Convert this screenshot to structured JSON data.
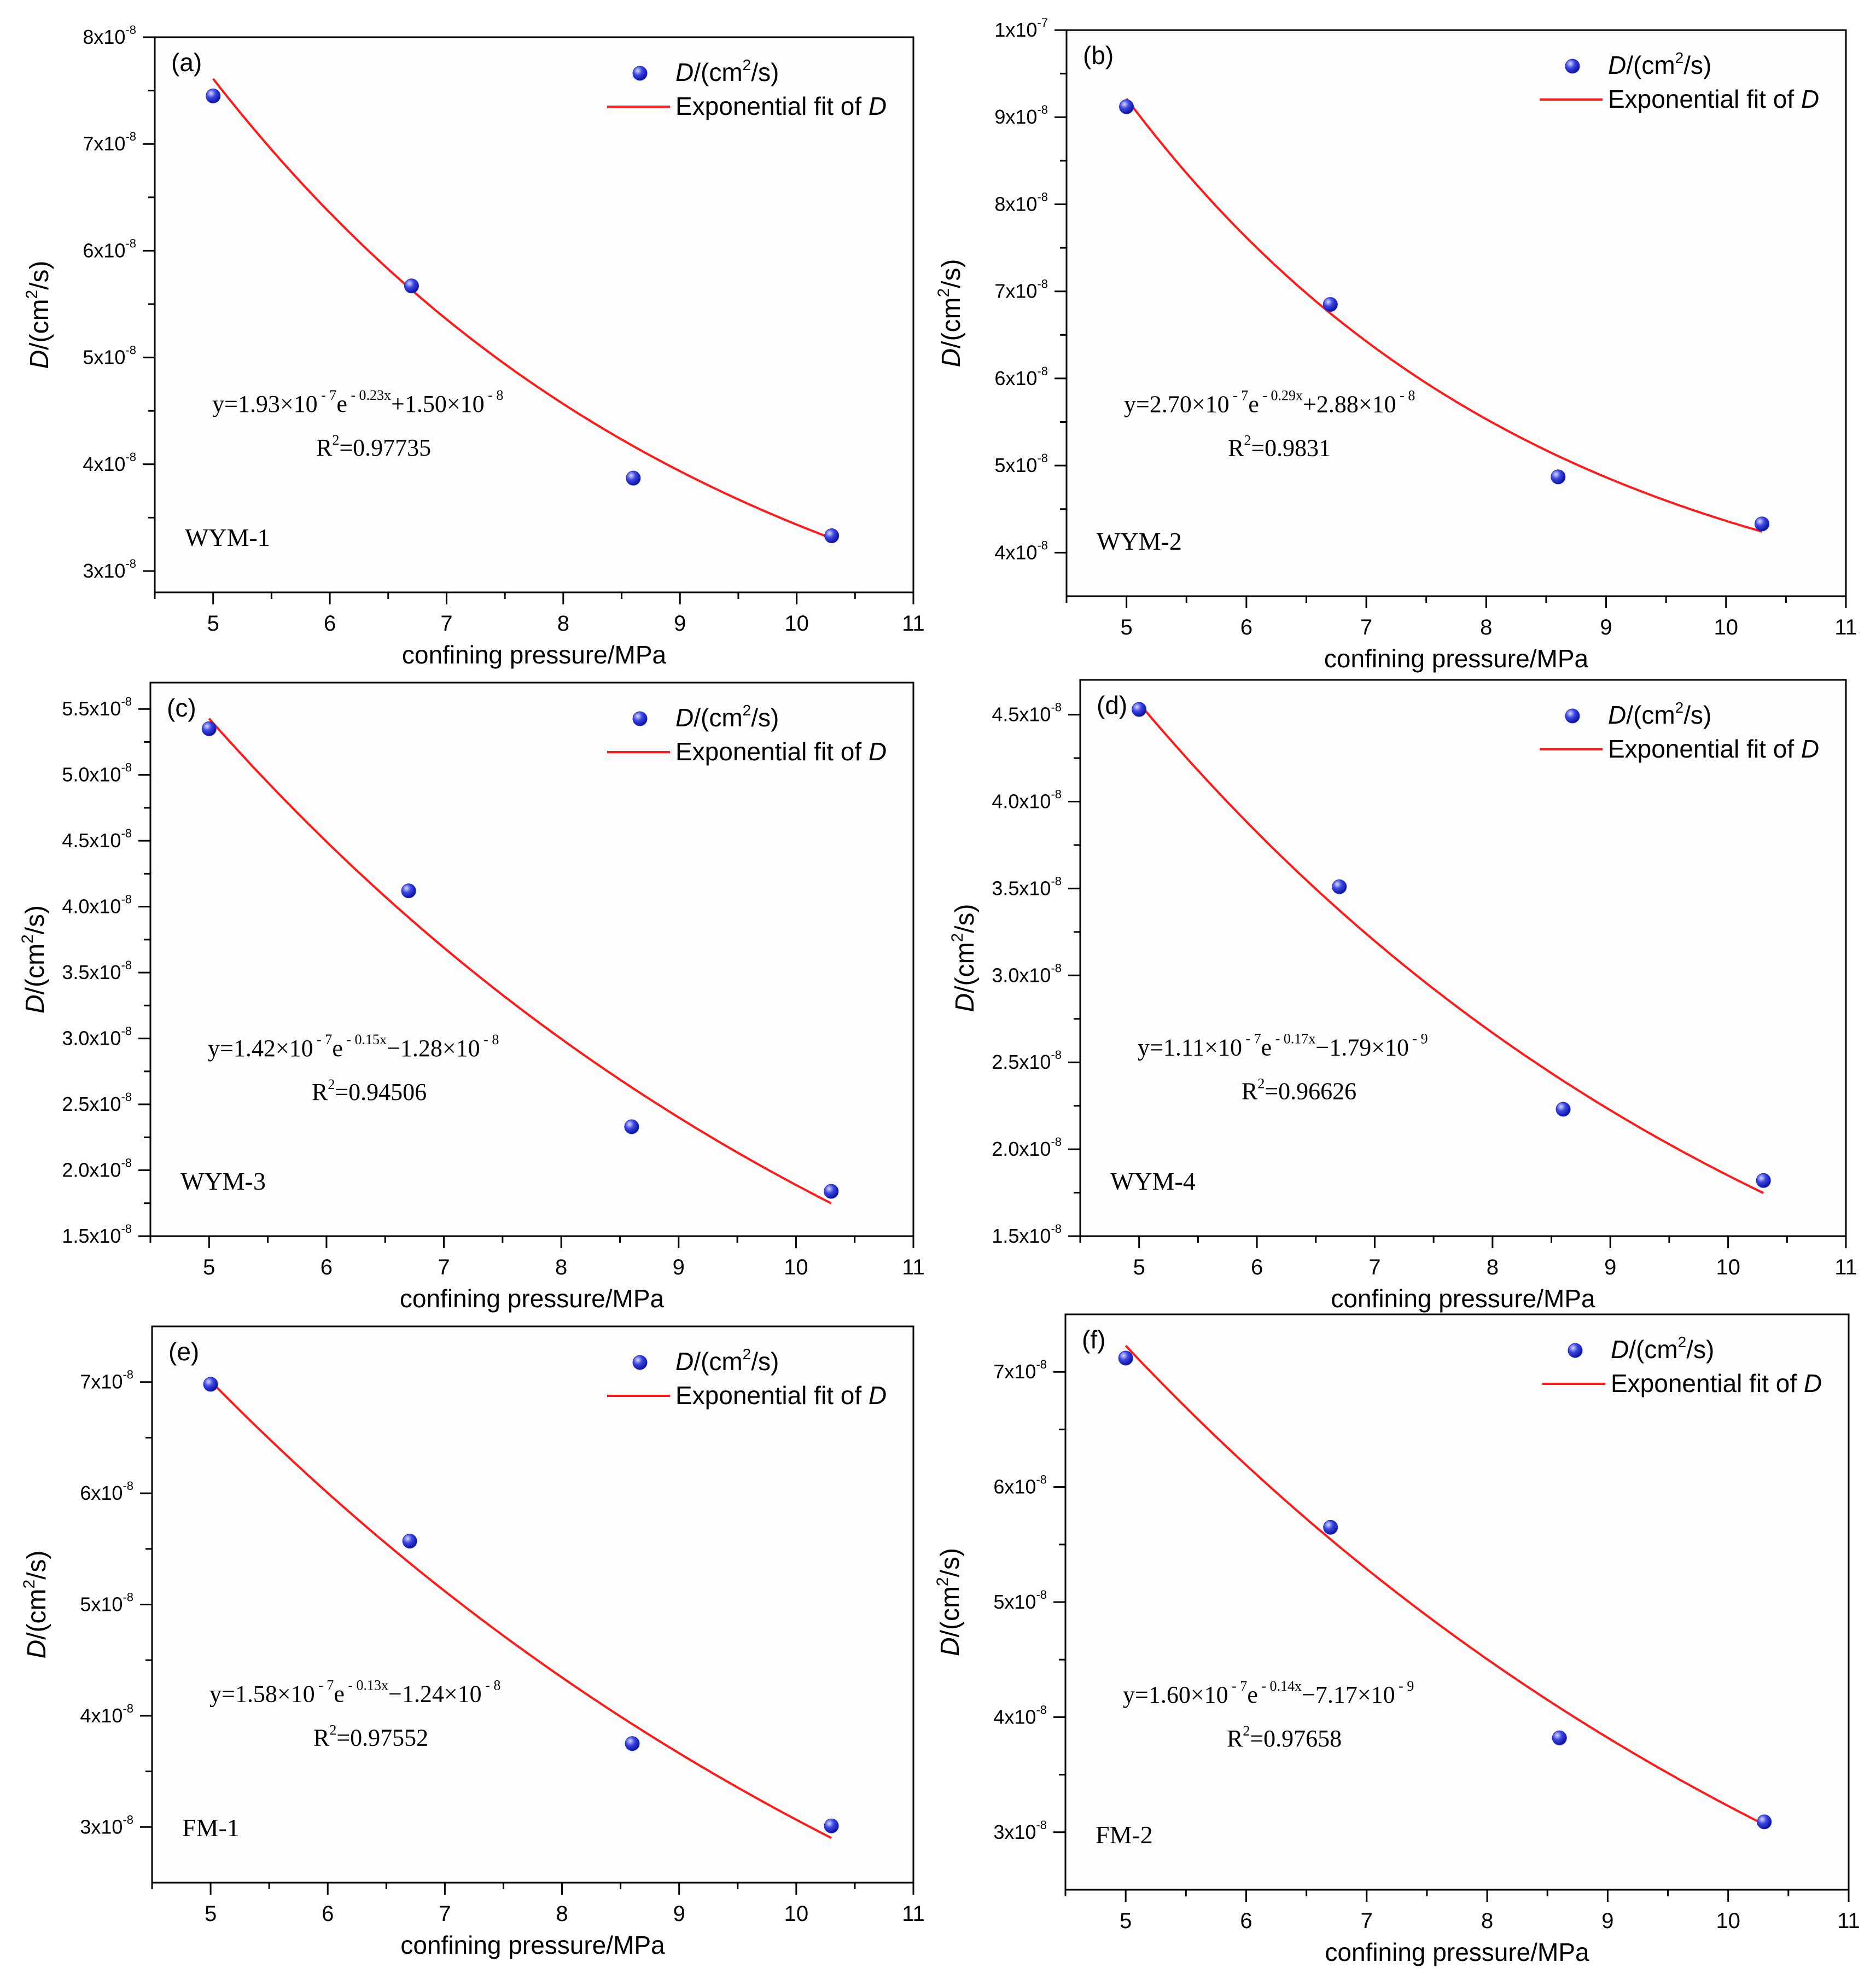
{
  "colors": {
    "fit_line": "#ff1a1a",
    "marker_fill": "#1f2bd6",
    "marker_highlight": "#c9ccff",
    "axis": "#000000",
    "plot_background": "#fdfdfd"
  },
  "chart_data": [
    {
      "id": "a",
      "type": "scatter",
      "panel_label": "(a)",
      "sample": "WYM-1",
      "xlabel": "confining pressure/MPa",
      "ylabel_main": "D",
      "ylabel_unit": "/(cm",
      "ylabel_sup": "2",
      "ylabel_tail": "/s)",
      "xlim": [
        4.5,
        11
      ],
      "ylim": [
        2.8e-08,
        8e-08
      ],
      "xticks": [
        5,
        6,
        7,
        8,
        9,
        10,
        11
      ],
      "yticks": [
        {
          "value": 3e-08,
          "mant": "3x10",
          "exp": "-8"
        },
        {
          "value": 4e-08,
          "mant": "4x10",
          "exp": "-8"
        },
        {
          "value": 5e-08,
          "mant": "5x10",
          "exp": "-8"
        },
        {
          "value": 6e-08,
          "mant": "6x10",
          "exp": "-8"
        },
        {
          "value": 7e-08,
          "mant": "7x10",
          "exp": "-8"
        },
        {
          "value": 8e-08,
          "mant": "8x10",
          "exp": "-8"
        }
      ],
      "points": [
        {
          "x": 5.0,
          "y": 7.45e-08
        },
        {
          "x": 6.7,
          "y": 5.67e-08
        },
        {
          "x": 8.6,
          "y": 3.87e-08
        },
        {
          "x": 10.3,
          "y": 3.33e-08
        }
      ],
      "fit": {
        "a": 1.93e-07,
        "b": 0.23,
        "c": 1.5e-08
      },
      "legend": {
        "points_main": "D",
        "points_unit": "/(cm",
        "points_sup": "2",
        "points_tail": "/s)",
        "fit_text": "Exponential fit of ",
        "fit_var": "D"
      },
      "equation": {
        "p1": "y=1.93×10",
        "e1": " - 7",
        "p2": "e",
        "e2": " - 0.23x",
        "p3": "+1.50×10",
        "e3": " - 8",
        "r2_pre": "R",
        "r2_sup": "2",
        "r2_val": "=0.97735"
      }
    },
    {
      "id": "b",
      "type": "scatter",
      "panel_label": "(b)",
      "sample": "WYM-2",
      "xlabel": "confining pressure/MPa",
      "ylabel_main": "D",
      "ylabel_unit": "/(cm",
      "ylabel_sup": "2",
      "ylabel_tail": "/s)",
      "xlim": [
        4.5,
        11
      ],
      "ylim": [
        3.5e-08,
        1e-07
      ],
      "xticks": [
        5,
        6,
        7,
        8,
        9,
        10,
        11
      ],
      "yticks": [
        {
          "value": 4e-08,
          "mant": "4x10",
          "exp": "-8"
        },
        {
          "value": 5e-08,
          "mant": "5x10",
          "exp": "-8"
        },
        {
          "value": 6e-08,
          "mant": "6x10",
          "exp": "-8"
        },
        {
          "value": 7e-08,
          "mant": "7x10",
          "exp": "-8"
        },
        {
          "value": 8e-08,
          "mant": "8x10",
          "exp": "-8"
        },
        {
          "value": 9e-08,
          "mant": "9x10",
          "exp": "-8"
        },
        {
          "value": 1e-07,
          "mant": "1x10",
          "exp": "-7"
        }
      ],
      "points": [
        {
          "x": 5.0,
          "y": 9.12e-08
        },
        {
          "x": 6.7,
          "y": 6.85e-08
        },
        {
          "x": 8.6,
          "y": 4.87e-08
        },
        {
          "x": 10.3,
          "y": 4.33e-08
        }
      ],
      "fit": {
        "a": 2.7e-07,
        "b": 0.29,
        "c": 2.88e-08
      },
      "legend": {
        "points_main": "D",
        "points_unit": "/(cm",
        "points_sup": "2",
        "points_tail": "/s)",
        "fit_text": "Exponential fit of ",
        "fit_var": "D"
      },
      "equation": {
        "p1": "y=2.70×10",
        "e1": " - 7",
        "p2": "e",
        "e2": " - 0.29x",
        "p3": "+2.88×10",
        "e3": " - 8",
        "r2_pre": "R",
        "r2_sup": "2",
        "r2_val": "=0.9831"
      }
    },
    {
      "id": "c",
      "type": "scatter",
      "panel_label": "(c)",
      "sample": "WYM-3",
      "xlabel": "confining pressure/MPa",
      "ylabel_main": "D",
      "ylabel_unit": "/(cm",
      "ylabel_sup": "2",
      "ylabel_tail": "/s)",
      "xlim": [
        4.5,
        11
      ],
      "ylim": [
        1.5e-08,
        5.7e-08
      ],
      "xticks": [
        5,
        6,
        7,
        8,
        9,
        10,
        11
      ],
      "yticks": [
        {
          "value": 1.5e-08,
          "mant": "1.5x10",
          "exp": "-8"
        },
        {
          "value": 2e-08,
          "mant": "2.0x10",
          "exp": "-8"
        },
        {
          "value": 2.5e-08,
          "mant": "2.5x10",
          "exp": "-8"
        },
        {
          "value": 3e-08,
          "mant": "3.0x10",
          "exp": "-8"
        },
        {
          "value": 3.5e-08,
          "mant": "3.5x10",
          "exp": "-8"
        },
        {
          "value": 4e-08,
          "mant": "4.0x10",
          "exp": "-8"
        },
        {
          "value": 4.5e-08,
          "mant": "4.5x10",
          "exp": "-8"
        },
        {
          "value": 5e-08,
          "mant": "5.0x10",
          "exp": "-8"
        },
        {
          "value": 5.5e-08,
          "mant": "5.5x10",
          "exp": "-8"
        }
      ],
      "points": [
        {
          "x": 5.0,
          "y": 5.35e-08
        },
        {
          "x": 6.7,
          "y": 4.12e-08
        },
        {
          "x": 8.6,
          "y": 2.33e-08
        },
        {
          "x": 10.3,
          "y": 1.84e-08
        }
      ],
      "fit": {
        "a": 1.42e-07,
        "b": 0.15,
        "c": -1.28e-08
      },
      "legend": {
        "points_main": "D",
        "points_unit": "/(cm",
        "points_sup": "2",
        "points_tail": "/s)",
        "fit_text": "Exponential fit of ",
        "fit_var": "D"
      },
      "equation": {
        "p1": "y=1.42×10",
        "e1": " - 7",
        "p2": "e",
        "e2": " - 0.15x",
        "p3": "−1.28×10",
        "e3": " - 8",
        "r2_pre": "R",
        "r2_sup": "2",
        "r2_val": "=0.94506"
      }
    },
    {
      "id": "d",
      "type": "scatter",
      "panel_label": "(d)",
      "sample": "WYM-4",
      "xlabel": "confining pressure/MPa",
      "ylabel_main": "D",
      "ylabel_unit": "/(cm",
      "ylabel_sup": "2",
      "ylabel_tail": "/s)",
      "xlim": [
        4.5,
        11
      ],
      "ylim": [
        1.5e-08,
        4.7e-08
      ],
      "xticks": [
        5,
        6,
        7,
        8,
        9,
        10,
        11
      ],
      "yticks": [
        {
          "value": 1.5e-08,
          "mant": "1.5x10",
          "exp": "-8"
        },
        {
          "value": 2e-08,
          "mant": "2.0x10",
          "exp": "-8"
        },
        {
          "value": 2.5e-08,
          "mant": "2.5x10",
          "exp": "-8"
        },
        {
          "value": 3e-08,
          "mant": "3.0x10",
          "exp": "-8"
        },
        {
          "value": 3.5e-08,
          "mant": "3.5x10",
          "exp": "-8"
        },
        {
          "value": 4e-08,
          "mant": "4.0x10",
          "exp": "-8"
        },
        {
          "value": 4.5e-08,
          "mant": "4.5x10",
          "exp": "-8"
        }
      ],
      "points": [
        {
          "x": 5.0,
          "y": 4.53e-08
        },
        {
          "x": 6.7,
          "y": 3.51e-08
        },
        {
          "x": 8.6,
          "y": 2.23e-08
        },
        {
          "x": 10.3,
          "y": 1.82e-08
        }
      ],
      "fit": {
        "a": 1.11e-07,
        "b": 0.17,
        "c": -1.79e-09
      },
      "legend": {
        "points_main": "D",
        "points_unit": "/(cm",
        "points_sup": "2",
        "points_tail": "/s)",
        "fit_text": "Exponential fit of ",
        "fit_var": "D"
      },
      "equation": {
        "p1": "y=1.11×10",
        "e1": " - 7",
        "p2": "e",
        "e2": " - 0.17x",
        "p3": "−1.79×10",
        "e3": " - 9",
        "r2_pre": "R",
        "r2_sup": "2",
        "r2_val": "=0.96626"
      }
    },
    {
      "id": "e",
      "type": "scatter",
      "panel_label": "(e)",
      "sample": "FM-1",
      "xlabel": "confining pressure/MPa",
      "ylabel_main": "D",
      "ylabel_unit": "/(cm",
      "ylabel_sup": "2",
      "ylabel_tail": "/s)",
      "xlim": [
        4.5,
        11
      ],
      "ylim": [
        2.5e-08,
        7.5e-08
      ],
      "xticks": [
        5,
        6,
        7,
        8,
        9,
        10,
        11
      ],
      "yticks": [
        {
          "value": 3e-08,
          "mant": "3x10",
          "exp": "-8"
        },
        {
          "value": 4e-08,
          "mant": "4x10",
          "exp": "-8"
        },
        {
          "value": 5e-08,
          "mant": "5x10",
          "exp": "-8"
        },
        {
          "value": 6e-08,
          "mant": "6x10",
          "exp": "-8"
        },
        {
          "value": 7e-08,
          "mant": "7x10",
          "exp": "-8"
        }
      ],
      "points": [
        {
          "x": 5.0,
          "y": 6.98e-08
        },
        {
          "x": 6.7,
          "y": 5.57e-08
        },
        {
          "x": 8.6,
          "y": 3.75e-08
        },
        {
          "x": 10.3,
          "y": 3.01e-08
        }
      ],
      "fit": {
        "a": 1.58e-07,
        "b": 0.13,
        "c": -1.24e-08
      },
      "legend": {
        "points_main": "D",
        "points_unit": "/(cm",
        "points_sup": "2",
        "points_tail": "/s)",
        "fit_text": "Exponential fit of ",
        "fit_var": "D"
      },
      "equation": {
        "p1": "y=1.58×10",
        "e1": " - 7",
        "p2": "e",
        "e2": " - 0.13x",
        "p3": "−1.24×10",
        "e3": " - 8",
        "r2_pre": "R",
        "r2_sup": "2",
        "r2_val": "=0.97552"
      }
    },
    {
      "id": "f",
      "type": "scatter",
      "panel_label": "(f)",
      "sample": "FM-2",
      "xlabel": "confining pressure/MPa",
      "ylabel_main": "D",
      "ylabel_unit": "/(cm",
      "ylabel_sup": "2",
      "ylabel_tail": "/s)",
      "xlim": [
        4.5,
        11
      ],
      "ylim": [
        2.5e-08,
        7.5e-08
      ],
      "xticks": [
        5,
        6,
        7,
        8,
        9,
        10,
        11
      ],
      "yticks": [
        {
          "value": 3e-08,
          "mant": "3x10",
          "exp": "-8"
        },
        {
          "value": 4e-08,
          "mant": "4x10",
          "exp": "-8"
        },
        {
          "value": 5e-08,
          "mant": "5x10",
          "exp": "-8"
        },
        {
          "value": 6e-08,
          "mant": "6x10",
          "exp": "-8"
        },
        {
          "value": 7e-08,
          "mant": "7x10",
          "exp": "-8"
        }
      ],
      "points": [
        {
          "x": 5.0,
          "y": 7.12e-08
        },
        {
          "x": 6.7,
          "y": 5.65e-08
        },
        {
          "x": 8.6,
          "y": 3.82e-08
        },
        {
          "x": 10.3,
          "y": 3.09e-08
        }
      ],
      "fit": {
        "a": 1.6e-07,
        "b": 0.14,
        "c": -7.17e-09
      },
      "legend": {
        "points_main": "D",
        "points_unit": "/(cm",
        "points_sup": "2",
        "points_tail": "/s)",
        "fit_text": "Exponential fit of ",
        "fit_var": "D"
      },
      "equation": {
        "p1": "y=1.60×10",
        "e1": " - 7",
        "p2": "e",
        "e2": " - 0.14x",
        "p3": "−7.17×10",
        "e3": " - 9",
        "r2_pre": "R",
        "r2_sup": "2",
        "r2_val": "=0.97658"
      }
    }
  ]
}
